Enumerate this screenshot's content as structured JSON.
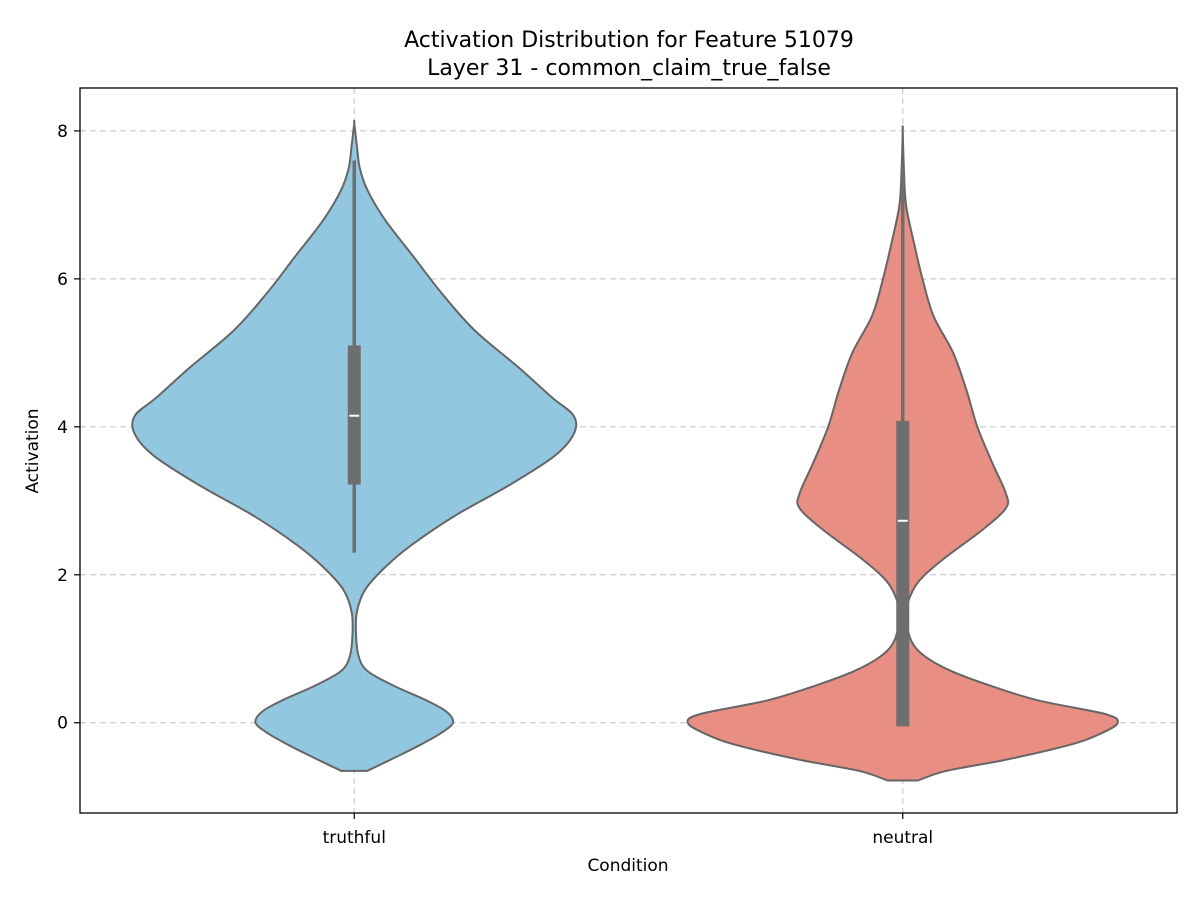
{
  "chart_data": {
    "type": "violin",
    "title": "Activation Distribution for Feature 51079",
    "subtitle": "Layer 31 - common_claim_true_false",
    "xlabel": "Condition",
    "ylabel": "Activation",
    "ylim": [
      -1.22,
      8.58
    ],
    "yticks": [
      0,
      2,
      4,
      6,
      8
    ],
    "ytick_labels": [
      "0",
      "2",
      "4",
      "6",
      "8"
    ],
    "grid": true,
    "categories": [
      "truthful",
      "neutral"
    ],
    "series": [
      {
        "category": "truthful",
        "color": "#92c8df",
        "min": 2.3,
        "q1": 3.22,
        "median": 4.15,
        "q3": 5.1,
        "max": 7.6,
        "kde_min": -0.65,
        "kde_max": 8.1,
        "density_profile": [
          [
            -0.65,
            0.06
          ],
          [
            -0.55,
            0.13
          ],
          [
            -0.45,
            0.2
          ],
          [
            -0.3,
            0.3
          ],
          [
            -0.15,
            0.39
          ],
          [
            0.0,
            0.45
          ],
          [
            0.15,
            0.42
          ],
          [
            0.3,
            0.33
          ],
          [
            0.5,
            0.18
          ],
          [
            0.7,
            0.06
          ],
          [
            0.9,
            0.02
          ],
          [
            1.2,
            0.008
          ],
          [
            1.5,
            0.012
          ],
          [
            1.8,
            0.05
          ],
          [
            2.1,
            0.14
          ],
          [
            2.4,
            0.26
          ],
          [
            2.8,
            0.46
          ],
          [
            3.2,
            0.7
          ],
          [
            3.6,
            0.91
          ],
          [
            3.9,
            1.0
          ],
          [
            4.15,
            1.0
          ],
          [
            4.4,
            0.9
          ],
          [
            4.8,
            0.75
          ],
          [
            5.3,
            0.55
          ],
          [
            5.8,
            0.4
          ],
          [
            6.3,
            0.27
          ],
          [
            6.8,
            0.14
          ],
          [
            7.2,
            0.06
          ],
          [
            7.5,
            0.025
          ],
          [
            7.8,
            0.012
          ],
          [
            8.1,
            0.0
          ]
        ]
      },
      {
        "category": "neutral",
        "color": "#e88e82",
        "min": -0.05,
        "q1": -0.05,
        "median": 2.73,
        "q3": 4.08,
        "max": 7.5,
        "kde_min": -0.78,
        "kde_max": 8.0,
        "density_profile": [
          [
            -0.78,
            0.07
          ],
          [
            -0.65,
            0.2
          ],
          [
            -0.5,
            0.47
          ],
          [
            -0.3,
            0.76
          ],
          [
            -0.15,
            0.9
          ],
          [
            0.0,
            0.98
          ],
          [
            0.12,
            0.92
          ],
          [
            0.3,
            0.62
          ],
          [
            0.5,
            0.4
          ],
          [
            0.7,
            0.22
          ],
          [
            0.9,
            0.1
          ],
          [
            1.1,
            0.04
          ],
          [
            1.4,
            0.015
          ],
          [
            1.6,
            0.02
          ],
          [
            1.9,
            0.07
          ],
          [
            2.2,
            0.18
          ],
          [
            2.6,
            0.36
          ],
          [
            2.9,
            0.47
          ],
          [
            3.1,
            0.47
          ],
          [
            3.5,
            0.41
          ],
          [
            4.0,
            0.34
          ],
          [
            4.5,
            0.29
          ],
          [
            5.0,
            0.23
          ],
          [
            5.5,
            0.14
          ],
          [
            6.0,
            0.09
          ],
          [
            6.5,
            0.05
          ],
          [
            7.0,
            0.015
          ],
          [
            7.5,
            0.005
          ],
          [
            8.0,
            0.0
          ]
        ]
      }
    ]
  }
}
